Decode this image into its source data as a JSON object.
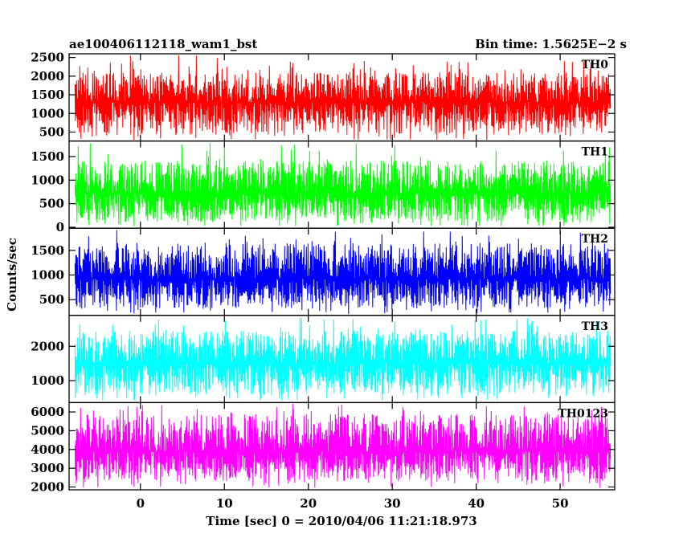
{
  "header": {
    "title": "ae100406112118_wam1_bst",
    "bin_time": "Bin time: 1.5625E−2 s"
  },
  "chart_data": {
    "type": "line",
    "title": "ae100406112118_wam1_bst",
    "xlabel": "Time [sec] 0 = 2010/04/06 11:21:18.973",
    "ylabel": "Counts/sec",
    "xlim": [
      -8.5,
      56.5
    ],
    "x_data_range": [
      -7.8,
      56.0
    ],
    "x_ticks": [
      0,
      10,
      20,
      30,
      40,
      50
    ],
    "x_tick_labels": [
      "0",
      "10",
      "20",
      "30",
      "40",
      "50"
    ],
    "bin_time_s": 0.015625,
    "grid": false,
    "panels": [
      {
        "label": "TH0",
        "color": "#ff0000",
        "ylim": [
          260,
          2600
        ],
        "y_ticks": [
          500,
          1000,
          1500,
          2000,
          2500
        ],
        "typical_range": [
          430,
          2100
        ],
        "extreme_range": [
          280,
          2560
        ],
        "mean": 1300
      },
      {
        "label": "TH1",
        "color": "#00ff00",
        "ylim": [
          -20,
          1830
        ],
        "y_ticks": [
          0,
          500,
          1000,
          1500
        ],
        "typical_range": [
          110,
          1420
        ],
        "extreme_range": [
          20,
          1800
        ],
        "mean": 720
      },
      {
        "label": "TH2",
        "color": "#0000ff",
        "ylim": [
          180,
          1950
        ],
        "y_ticks": [
          500,
          1000,
          1500
        ],
        "typical_range": [
          330,
          1650
        ],
        "extreme_range": [
          210,
          1920
        ],
        "mean": 930
      },
      {
        "label": "TH3",
        "color": "#00ffff",
        "ylim": [
          360,
          2900
        ],
        "y_ticks": [
          1000,
          2000
        ],
        "typical_range": [
          590,
          2450
        ],
        "extreme_range": [
          420,
          2860
        ],
        "mean": 1500
      },
      {
        "label": "TH0123",
        "color": "#ff00ff",
        "ylim": [
          1850,
          6500
        ],
        "y_ticks": [
          2000,
          3000,
          4000,
          5000,
          6000
        ],
        "typical_range": [
          2300,
          5900
        ],
        "extreme_range": [
          1950,
          6450
        ],
        "mean": 3900
      }
    ]
  }
}
